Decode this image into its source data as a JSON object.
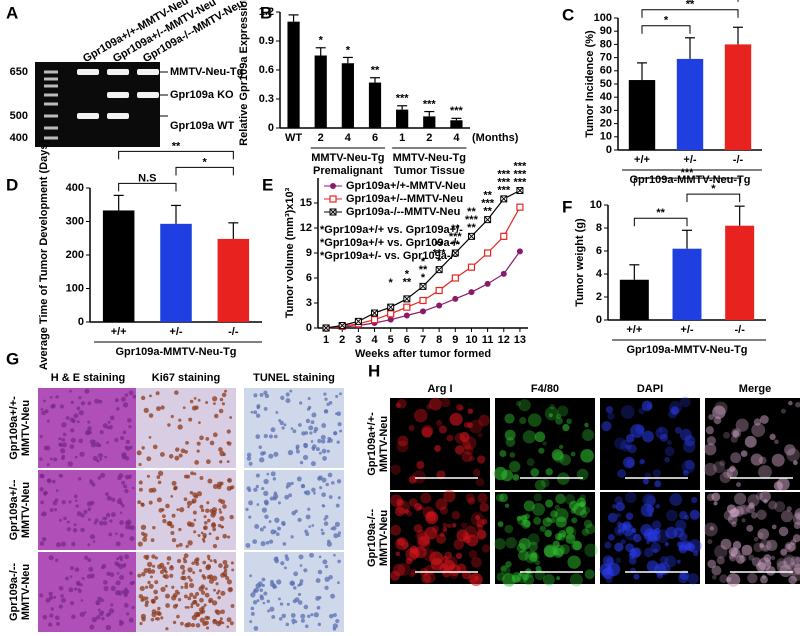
{
  "panel_labels": [
    "A",
    "B",
    "C",
    "D",
    "E",
    "F",
    "G",
    "H"
  ],
  "gel": {
    "lanes": [
      "Gpr109a+/+-MMTV-Neu",
      "Gpr109a+/--MMTV-Neu",
      "Gpr109a-/--MMTV-Neu"
    ],
    "ladder": [
      "650",
      "500",
      "400"
    ],
    "bands": [
      "MMTV-Neu-Tg",
      "Gpr109a KO",
      "Gpr109a WT"
    ]
  },
  "chart_data": [
    {
      "type": "bar",
      "ylabel": "Relative Gpr109a Expression",
      "categories": [
        "WT",
        "2",
        "4",
        "6",
        "1",
        "2",
        "4"
      ],
      "values": [
        1.1,
        0.75,
        0.67,
        0.47,
        0.19,
        0.12,
        0.08
      ],
      "errors": [
        0.07,
        0.08,
        0.06,
        0.05,
        0.04,
        0.05,
        0.02
      ],
      "colors": [
        "#000000",
        "#000000",
        "#000000",
        "#000000",
        "#000000",
        "#000000",
        "#000000"
      ],
      "bar_annotations": [
        null,
        "*",
        "*",
        "**",
        "***",
        "***",
        "***"
      ],
      "x_unit": "(Months)",
      "groups": [
        [
          "MMTV-Neu-Tg",
          "Premalignant"
        ],
        [
          "MMTV-Neu-Tg",
          "Tumor Tissue"
        ]
      ],
      "ylim": [
        0,
        1.2
      ],
      "yticks": [
        0,
        0.3,
        0.6,
        0.9,
        1.2
      ]
    },
    {
      "type": "bar",
      "ylabel": "Tumor Incidence (%)",
      "xlabel": "Gpr109a-MMTV-Neu-Tg",
      "categories": [
        "+/+",
        "+/-",
        "-/-"
      ],
      "values": [
        53,
        69,
        80
      ],
      "errors": [
        13,
        16,
        13
      ],
      "colors": [
        "#000000",
        "#1f3fe0",
        "#e8231f"
      ],
      "comparisons": [
        {
          "text": "*",
          "color": "#1f3fe0",
          "pair": [
            "+/+",
            "+/-"
          ]
        },
        {
          "text": "**",
          "color": "#e8231f",
          "pair": [
            "+/+",
            "-/-"
          ]
        },
        {
          "text": "*",
          "color": "#000000",
          "pair": [
            "+/-",
            "-/-"
          ]
        }
      ],
      "ylim": [
        0,
        100
      ],
      "yticks": [
        0,
        10,
        20,
        30,
        40,
        50,
        60,
        70,
        80,
        90,
        100
      ]
    },
    {
      "type": "bar",
      "ylabel": "Average Time of Tumor Development (Days)",
      "xlabel": "Gpr109a-MMTV-Neu-Tg",
      "categories": [
        "+/+",
        "+/-",
        "-/-"
      ],
      "values": [
        333,
        293,
        248
      ],
      "errors": [
        45,
        55,
        48
      ],
      "colors": [
        "#000000",
        "#1f3fe0",
        "#e8231f"
      ],
      "comparisons": [
        {
          "text": "N.S",
          "color": "#1f3fe0",
          "pair": [
            "+/+",
            "+/-"
          ]
        },
        {
          "text": "*",
          "color": "#000000",
          "pair": [
            "+/-",
            "-/-"
          ]
        },
        {
          "text": "**",
          "color": "#e8231f",
          "pair": [
            "+/+",
            "-/-"
          ]
        }
      ],
      "ylim": [
        0,
        400
      ],
      "yticks": [
        0,
        100,
        200,
        300,
        400
      ]
    },
    {
      "type": "line",
      "ylabel": "Tumor volume (mm³)x10³",
      "xlabel": "Weeks after tumor formed",
      "x": [
        1,
        2,
        3,
        4,
        5,
        6,
        7,
        8,
        9,
        10,
        11,
        12,
        13
      ],
      "series": [
        {
          "name": "Gpr109a+/+-MMTV-Neu",
          "color": "#8b1a6b",
          "label_color": "#000000",
          "marker": "circle",
          "values": [
            0,
            0.1,
            0.3,
            0.6,
            1,
            1.5,
            2,
            2.7,
            3.5,
            4.3,
            5.3,
            6.5,
            9.2
          ]
        },
        {
          "name": "Gpr109a+/--MMTV-Neu",
          "color": "#e8231f",
          "label_color": "#1f3fe0",
          "marker": "square",
          "values": [
            0,
            0.2,
            0.5,
            1,
            1.7,
            2.5,
            3.3,
            4.5,
            6,
            7.3,
            9,
            11,
            14.5
          ]
        },
        {
          "name": "Gpr109a-/--MMTV-Neu",
          "color": "#000000",
          "label_color": "#e8231f",
          "marker": "cross",
          "values": [
            0,
            0.3,
            0.8,
            1.8,
            2.5,
            3.5,
            5,
            7,
            9,
            11,
            13,
            15.5,
            16.5
          ]
        }
      ],
      "notes": [
        {
          "text": "*Gpr109a+/+ vs. Gpr109a+/-",
          "color": "#1f3fe0"
        },
        {
          "text": "*Gpr109a+/+ vs. Gpr109a-/-",
          "color": "#e8231f"
        },
        {
          "text": "*Gpr109a+/- vs. Gpr109a-/-",
          "color": "#000000"
        }
      ],
      "significance": [
        {
          "color": "#1f3fe0",
          "x": [
            7,
            8,
            9,
            10,
            11,
            12,
            13
          ],
          "labels": [
            "*",
            "*",
            "**",
            "**",
            "**",
            "***",
            "***"
          ]
        },
        {
          "color": "#e8231f",
          "x": [
            6,
            7,
            8,
            9,
            10,
            11,
            12,
            13
          ],
          "labels": [
            "**",
            "**",
            "***",
            "***",
            "***",
            "***",
            "***",
            "***"
          ]
        },
        {
          "color": "#000000",
          "x": [
            5,
            6,
            7,
            8,
            9,
            10,
            11,
            12,
            13
          ],
          "labels": [
            "*",
            "*",
            "*",
            "**",
            "**",
            "**",
            "**",
            "***",
            "***"
          ]
        }
      ],
      "xlim": [
        0.5,
        13.5
      ],
      "xticks": [
        1,
        2,
        3,
        4,
        5,
        6,
        7,
        8,
        9,
        10,
        11,
        12,
        13
      ],
      "ylim": [
        0,
        18
      ],
      "yticks": [
        0,
        3,
        6,
        9,
        12,
        15
      ]
    },
    {
      "type": "bar",
      "ylabel": "Tumor weight (g)",
      "xlabel": "Gpr109a-MMTV-Neu-Tg",
      "categories": [
        "+/+",
        "+/-",
        "-/-"
      ],
      "values": [
        3.5,
        6.2,
        8.2
      ],
      "errors": [
        1.3,
        1.6,
        1.7
      ],
      "colors": [
        "#000000",
        "#1f3fe0",
        "#e8231f"
      ],
      "comparisons": [
        {
          "text": "**",
          "color": "#1f3fe0",
          "pair": [
            "+/+",
            "+/-"
          ]
        },
        {
          "text": "*",
          "color": "#000000",
          "pair": [
            "+/-",
            "-/-"
          ]
        },
        {
          "text": "***",
          "color": "#e8231f",
          "pair": [
            "+/+",
            "-/-"
          ]
        }
      ],
      "ylim": [
        0,
        10
      ],
      "yticks": [
        0,
        2,
        4,
        6,
        8,
        10
      ]
    }
  ],
  "histology": {
    "columns": [
      "H & E staining",
      "Ki67 staining",
      "TUNEL staining"
    ],
    "rows": [
      [
        "Gpr109a+/+-",
        "MMTV-Neu"
      ],
      [
        "Gpr109a+/--",
        "MMTV-Neu"
      ],
      [
        "Gpr109a-/--",
        "MMTV-Neu"
      ]
    ]
  },
  "fluorescence": {
    "columns": [
      "Arg I",
      "F4/80",
      "DAPI",
      "Merge"
    ],
    "rows": [
      [
        "Gpr109a+/+-",
        "MMTV-Neu"
      ],
      [
        "Gpr109a-/--",
        "MMTV-Neu"
      ]
    ]
  }
}
